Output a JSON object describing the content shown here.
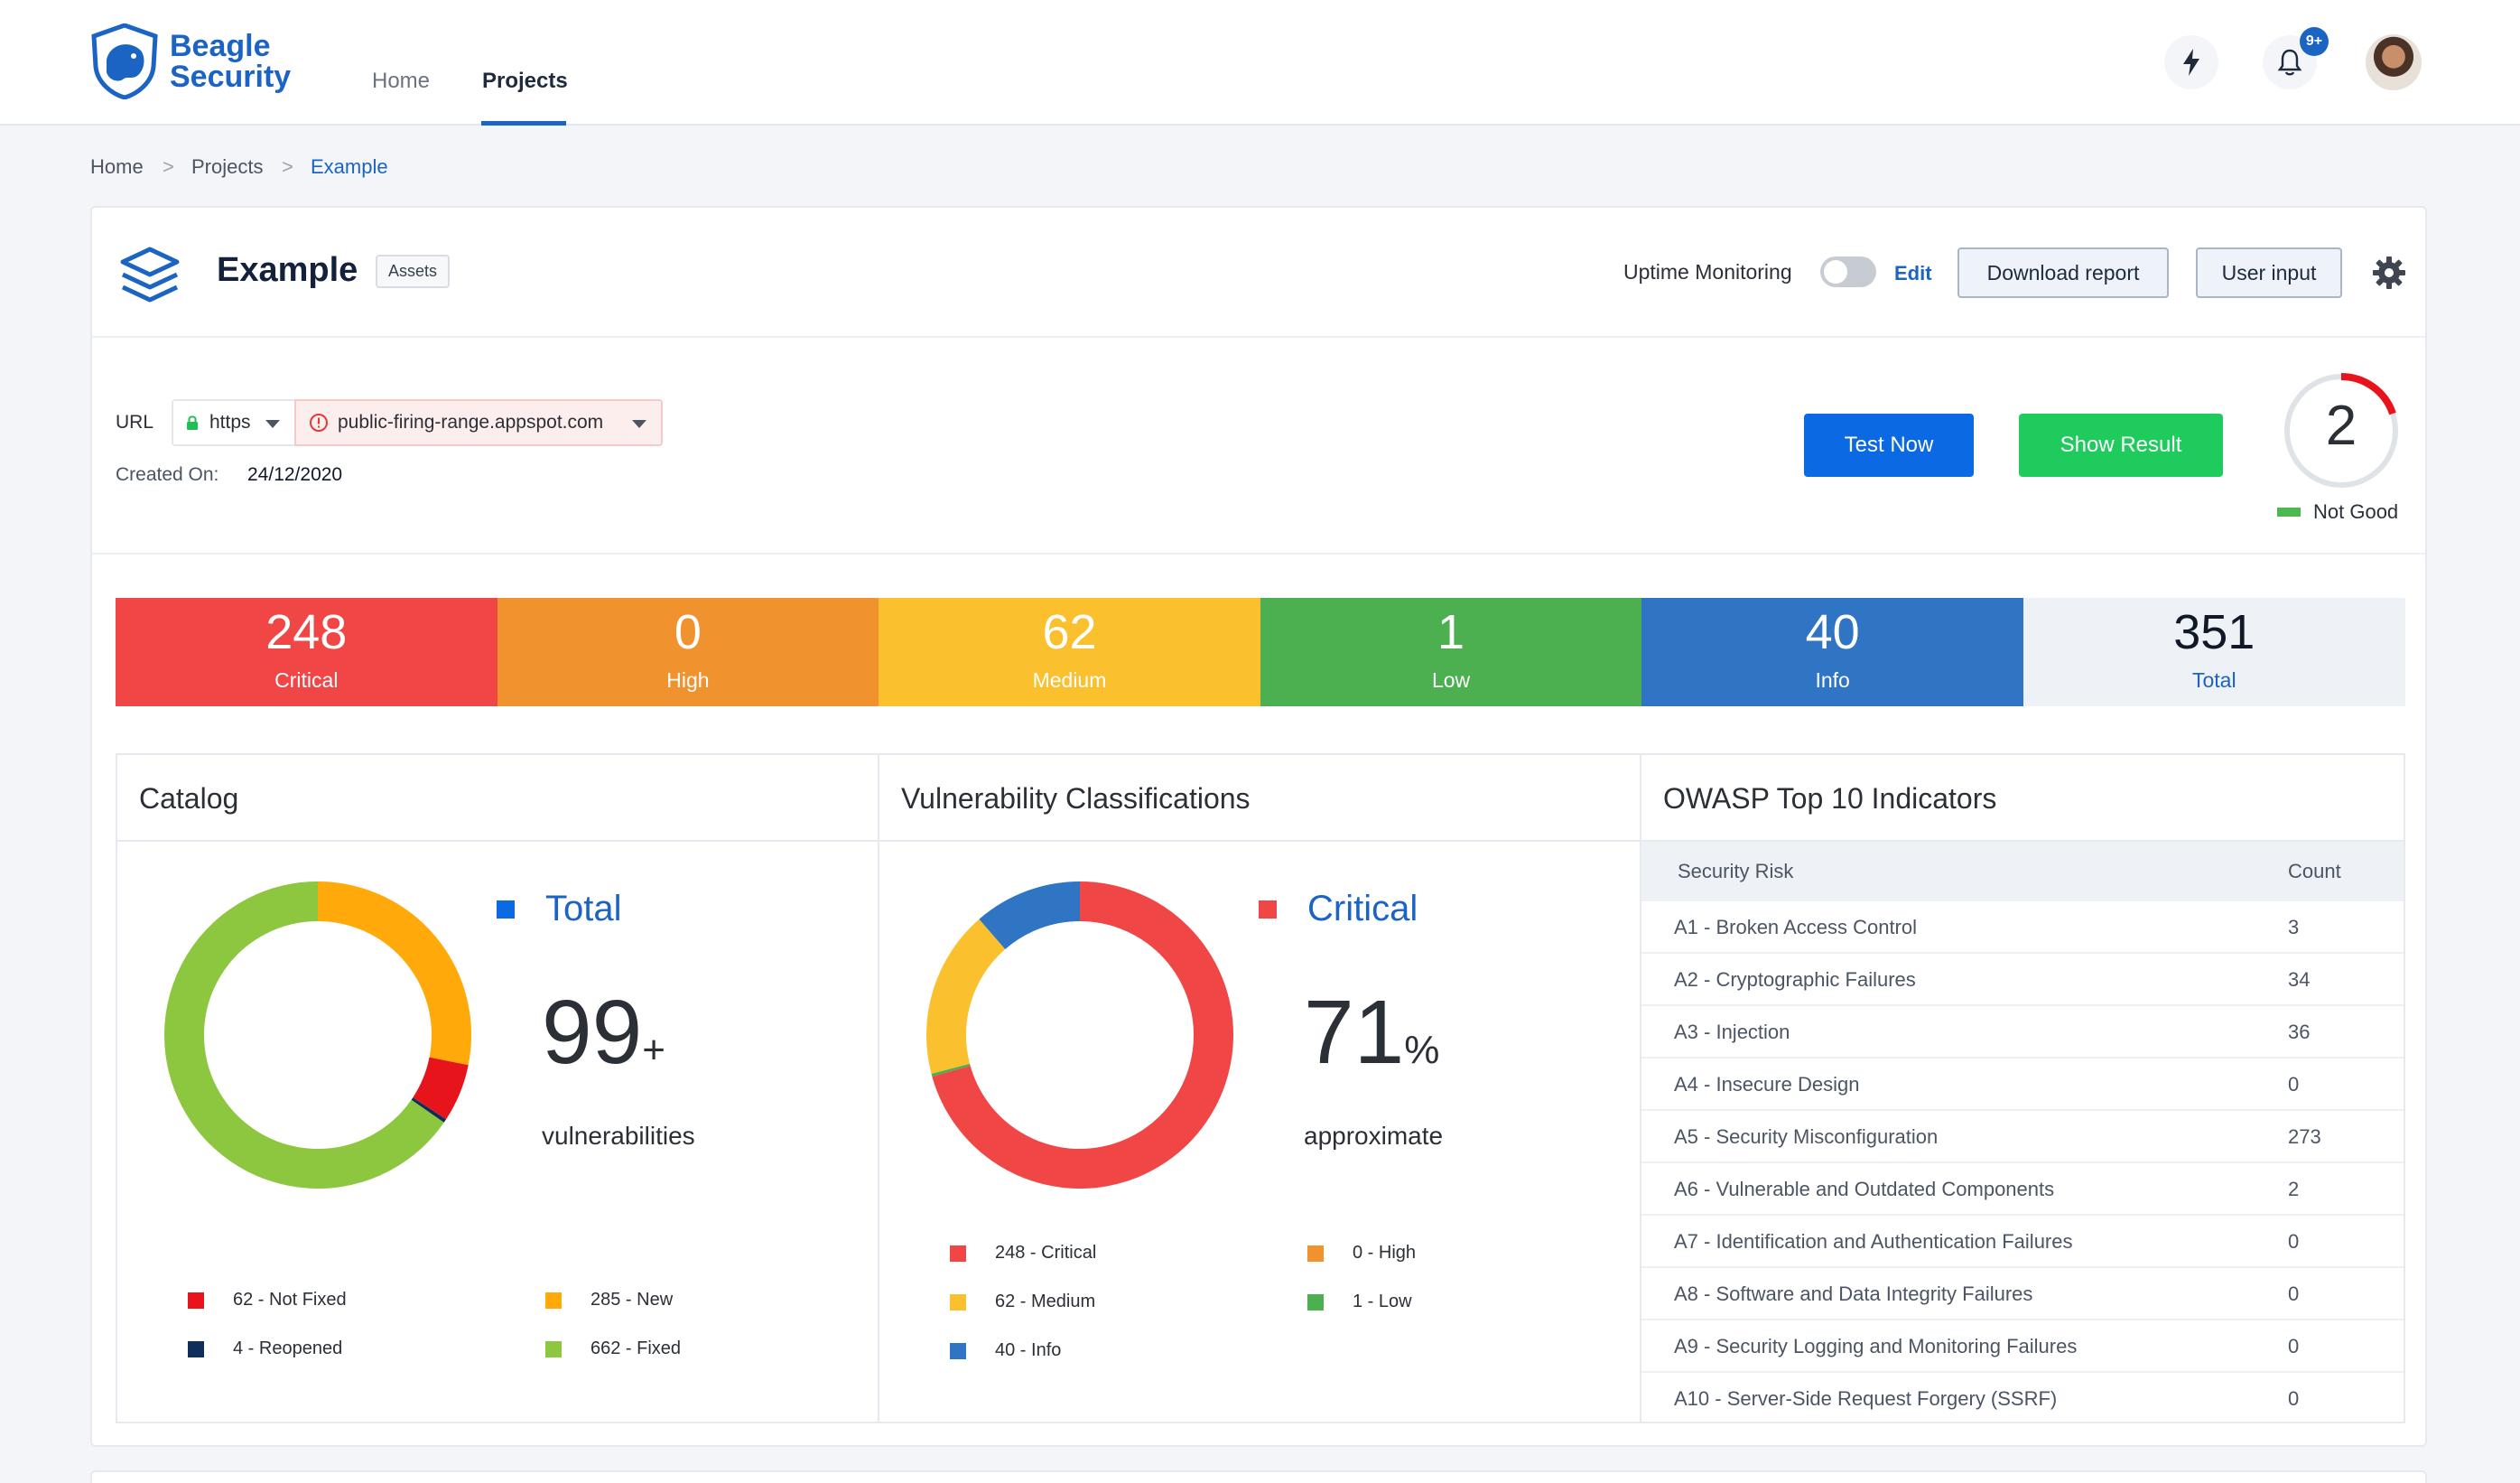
{
  "brand": {
    "line1": "Beagle",
    "line2": "Security"
  },
  "nav": {
    "home": "Home",
    "projects": "Projects"
  },
  "notifications": {
    "badge": "9+"
  },
  "breadcrumb": {
    "home": "Home",
    "projects": "Projects",
    "current": "Example",
    "sep": ">"
  },
  "project": {
    "title": "Example",
    "tag": "Assets",
    "uptime_label": "Uptime Monitoring",
    "uptime_enabled": false,
    "edit": "Edit",
    "download_report": "Download report",
    "user_input": "User input",
    "url_label": "URL",
    "protocol": "https",
    "host": "public-firing-range.appspot.com",
    "created_label": "Created On:",
    "created_value": "24/12/2020",
    "test_now": "Test Now",
    "show_result": "Show Result",
    "score": "2",
    "score_status": "Not Good"
  },
  "severity": [
    {
      "count": "248",
      "label": "Critical",
      "color": "#f04646"
    },
    {
      "count": "0",
      "label": "High",
      "color": "#f0922e"
    },
    {
      "count": "62",
      "label": "Medium",
      "color": "#fbc02d"
    },
    {
      "count": "1",
      "label": "Low",
      "color": "#4caf50"
    },
    {
      "count": "40",
      "label": "Info",
      "color": "#2f75c4"
    },
    {
      "count": "351",
      "label": "Total",
      "color": "#eef1f5"
    }
  ],
  "catalog": {
    "title": "Catalog",
    "legend_title": "Total",
    "big_number": "99",
    "big_suffix": "+",
    "subtitle": "vulnerabilities",
    "items": [
      {
        "label": "62 - Not Fixed",
        "value": 62,
        "color": "#e8141c"
      },
      {
        "label": "285 - New",
        "value": 285,
        "color": "#ffa90a"
      },
      {
        "label": "4 - Reopened",
        "value": 4,
        "color": "#0f2e5c"
      },
      {
        "label": "662 - Fixed",
        "value": 662,
        "color": "#8dc63f"
      }
    ]
  },
  "classifications": {
    "title": "Vulnerability Classifications",
    "legend_title": "Critical",
    "big_number": "71",
    "big_suffix": "%",
    "subtitle": "approximate",
    "items": [
      {
        "label": "248 - Critical",
        "value": 248,
        "color": "#f04646"
      },
      {
        "label": "0 - High",
        "value": 0,
        "color": "#f0922e"
      },
      {
        "label": "62 - Medium",
        "value": 62,
        "color": "#fbc02d"
      },
      {
        "label": "1 - Low",
        "value": 1,
        "color": "#4caf50"
      },
      {
        "label": "40 - Info",
        "value": 40,
        "color": "#2f75c4"
      }
    ]
  },
  "owasp": {
    "title": "OWASP Top 10 Indicators",
    "col_risk": "Security Risk",
    "col_count": "Count",
    "rows": [
      {
        "risk": "A1 - Broken Access Control",
        "count": "3"
      },
      {
        "risk": "A2 - Cryptographic Failures",
        "count": "34"
      },
      {
        "risk": "A3 - Injection",
        "count": "36"
      },
      {
        "risk": "A4 - Insecure Design",
        "count": "0"
      },
      {
        "risk": "A5 - Security Misconfiguration",
        "count": "273"
      },
      {
        "risk": "A6 - Vulnerable and Outdated Components",
        "count": "2"
      },
      {
        "risk": "A7 - Identification and Authentication Failures",
        "count": "0"
      },
      {
        "risk": "A8 - Software and Data Integrity Failures",
        "count": "0"
      },
      {
        "risk": "A9 - Security Logging and Monitoring Failures",
        "count": "0"
      },
      {
        "risk": "A10 - Server-Side Request Forgery (SSRF)",
        "count": "0"
      }
    ]
  }
}
